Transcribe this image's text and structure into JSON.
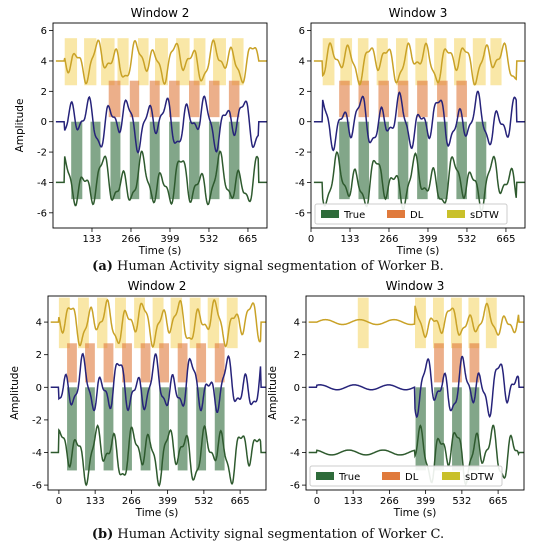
{
  "colors": {
    "true_fill": "#2e6b3a",
    "dl_fill": "#e07a3c",
    "sdtw_fill": "#f4d35e",
    "pink_band": "#f7b3d8",
    "top_signal": "#c9a227",
    "mid_signal": "#26237a",
    "bottom_signal": "#2e5a2e"
  },
  "captions": [
    {
      "label": "(a)",
      "text": "Human Activity signal segmentation of Worker B."
    },
    {
      "label": "(b)",
      "text": "Human Activity signal segmentation of Worker C."
    }
  ],
  "chart_data": [
    {
      "type": "line",
      "title": "Window 2",
      "xlabel": "Time (s)",
      "ylabel": "Amplitude",
      "xlim": [
        0,
        730
      ],
      "ylim": [
        -7,
        6.5
      ],
      "xticks": [
        133,
        266,
        399,
        532,
        665
      ],
      "yticks": [
        6,
        4,
        2,
        0,
        -2,
        -4,
        -6
      ],
      "show_x_zero_tick": false,
      "show_legend": false,
      "series": [
        {
          "role": "top",
          "baseline": 4,
          "amplitude": 1.4,
          "start": 40,
          "end": 700
        },
        {
          "role": "mid",
          "baseline": 0,
          "amplitude": 1.8,
          "start": 40,
          "end": 700
        },
        {
          "role": "bottom",
          "baseline": -4,
          "amplitude": 1.8,
          "start": 40,
          "end": 700
        }
      ],
      "true_segments": [
        [
          62,
          100
        ],
        [
          128,
          162
        ],
        [
          196,
          230
        ],
        [
          262,
          294
        ],
        [
          330,
          364
        ],
        [
          396,
          432
        ],
        [
          464,
          500
        ],
        [
          532,
          568
        ],
        [
          600,
          636
        ]
      ],
      "dl_segments": [
        [
          190,
          230
        ],
        [
          262,
          294
        ],
        [
          330,
          364
        ],
        [
          396,
          432
        ],
        [
          464,
          500
        ],
        [
          532,
          568
        ],
        [
          600,
          636
        ]
      ],
      "sdtw_segments": [
        [
          40,
          82
        ],
        [
          106,
          148
        ],
        [
          164,
          210
        ],
        [
          220,
          258
        ],
        [
          290,
          326
        ],
        [
          348,
          392
        ],
        [
          420,
          466
        ],
        [
          480,
          520
        ],
        [
          546,
          590
        ],
        [
          610,
          650
        ]
      ]
    },
    {
      "type": "line",
      "title": "Window 3",
      "xlabel": "Time (s)",
      "ylabel": "",
      "xlim": [
        0,
        730
      ],
      "ylim": [
        -7,
        6.5
      ],
      "xticks": [
        0,
        133,
        266,
        399,
        532,
        665
      ],
      "yticks": [
        6,
        4,
        2,
        0,
        -2,
        -4,
        -6
      ],
      "show_legend": true,
      "legend": [
        "True",
        "DL",
        "sDTW"
      ],
      "series": [
        {
          "role": "top",
          "baseline": 4,
          "amplitude": 1.4,
          "start": 40,
          "end": 700
        },
        {
          "role": "mid",
          "baseline": 0,
          "amplitude": 1.8,
          "start": 40,
          "end": 700
        },
        {
          "role": "bottom",
          "baseline": -4,
          "amplitude": 1.8,
          "start": 40,
          "end": 700
        }
      ],
      "true_segments": [
        [
          96,
          132
        ],
        [
          162,
          198
        ],
        [
          230,
          266
        ],
        [
          296,
          332
        ],
        [
          362,
          398
        ],
        [
          430,
          466
        ],
        [
          496,
          532
        ],
        [
          562,
          598
        ]
      ],
      "dl_segments": [
        [
          96,
          132
        ],
        [
          162,
          198
        ],
        [
          230,
          266
        ],
        [
          296,
          332
        ],
        [
          362,
          398
        ],
        [
          430,
          466
        ],
        [
          496,
          532
        ]
      ],
      "sdtw_segments": [
        [
          40,
          80
        ],
        [
          100,
          140
        ],
        [
          160,
          196
        ],
        [
          224,
          262
        ],
        [
          290,
          330
        ],
        [
          356,
          396
        ],
        [
          420,
          462
        ],
        [
          488,
          528
        ],
        [
          552,
          596
        ],
        [
          612,
          650
        ]
      ]
    },
    {
      "type": "line",
      "title": "Window 2",
      "xlabel": "Time (s)",
      "ylabel": "Amplitude",
      "xlim": [
        -40,
        760
      ],
      "ylim": [
        -6.3,
        5.6
      ],
      "xticks": [
        0,
        133,
        266,
        399,
        532,
        665
      ],
      "yticks": [
        4,
        2,
        0,
        -2,
        -4,
        -6
      ],
      "show_legend": false,
      "series": [
        {
          "role": "top",
          "baseline": 4,
          "amplitude": 1.4,
          "start": 0,
          "end": 740
        },
        {
          "role": "mid",
          "baseline": 0,
          "amplitude": 1.8,
          "start": 0,
          "end": 740
        },
        {
          "role": "bottom",
          "baseline": -4,
          "amplitude": 1.8,
          "start": 0,
          "end": 740
        }
      ],
      "true_segments": [
        [
          30,
          66
        ],
        [
          96,
          132
        ],
        [
          164,
          200
        ],
        [
          232,
          268
        ],
        [
          300,
          336
        ],
        [
          368,
          404
        ],
        [
          436,
          472
        ],
        [
          504,
          540
        ],
        [
          572,
          608
        ]
      ],
      "dl_segments": [
        [
          30,
          66
        ],
        [
          96,
          132
        ],
        [
          164,
          200
        ],
        [
          232,
          268
        ],
        [
          300,
          336
        ],
        [
          368,
          404
        ],
        [
          436,
          472
        ],
        [
          504,
          540
        ],
        [
          572,
          608
        ]
      ],
      "sdtw_segments": [
        [
          0,
          40
        ],
        [
          70,
          110
        ],
        [
          140,
          178
        ],
        [
          206,
          246
        ],
        [
          276,
          316
        ],
        [
          344,
          384
        ],
        [
          410,
          452
        ],
        [
          480,
          520
        ],
        [
          546,
          588
        ],
        [
          616,
          656
        ]
      ]
    },
    {
      "type": "line",
      "title": "Window 3",
      "xlabel": "Time (s)",
      "ylabel": "Amplitude",
      "xlim": [
        -40,
        760
      ],
      "ylim": [
        -6.3,
        5.6
      ],
      "xticks": [
        0,
        133,
        266,
        399,
        532,
        665
      ],
      "yticks": [
        4,
        2,
        0,
        -2,
        -4,
        -6
      ],
      "show_legend": true,
      "legend": [
        "True",
        "DL",
        "sDTW"
      ],
      "series": [
        {
          "role": "top",
          "baseline": 4,
          "amplitude": 1.0,
          "start": 0,
          "end": 740,
          "active_from": 360
        },
        {
          "role": "mid",
          "baseline": 0,
          "amplitude": 1.8,
          "start": 0,
          "end": 740,
          "active_from": 360
        },
        {
          "role": "bottom",
          "baseline": -4,
          "amplitude": 1.8,
          "start": 0,
          "end": 740,
          "active_from": 360
        }
      ],
      "true_segments": [
        [
          362,
          400
        ],
        [
          430,
          466
        ],
        [
          496,
          532
        ],
        [
          560,
          596
        ]
      ],
      "dl_segments": [
        [
          430,
          466
        ],
        [
          496,
          532
        ],
        [
          560,
          596
        ]
      ],
      "sdtw_segments": [
        [
          150,
          190
        ],
        [
          360,
          400
        ],
        [
          426,
          466
        ],
        [
          492,
          532
        ],
        [
          556,
          596
        ],
        [
          620,
          660
        ]
      ]
    }
  ]
}
